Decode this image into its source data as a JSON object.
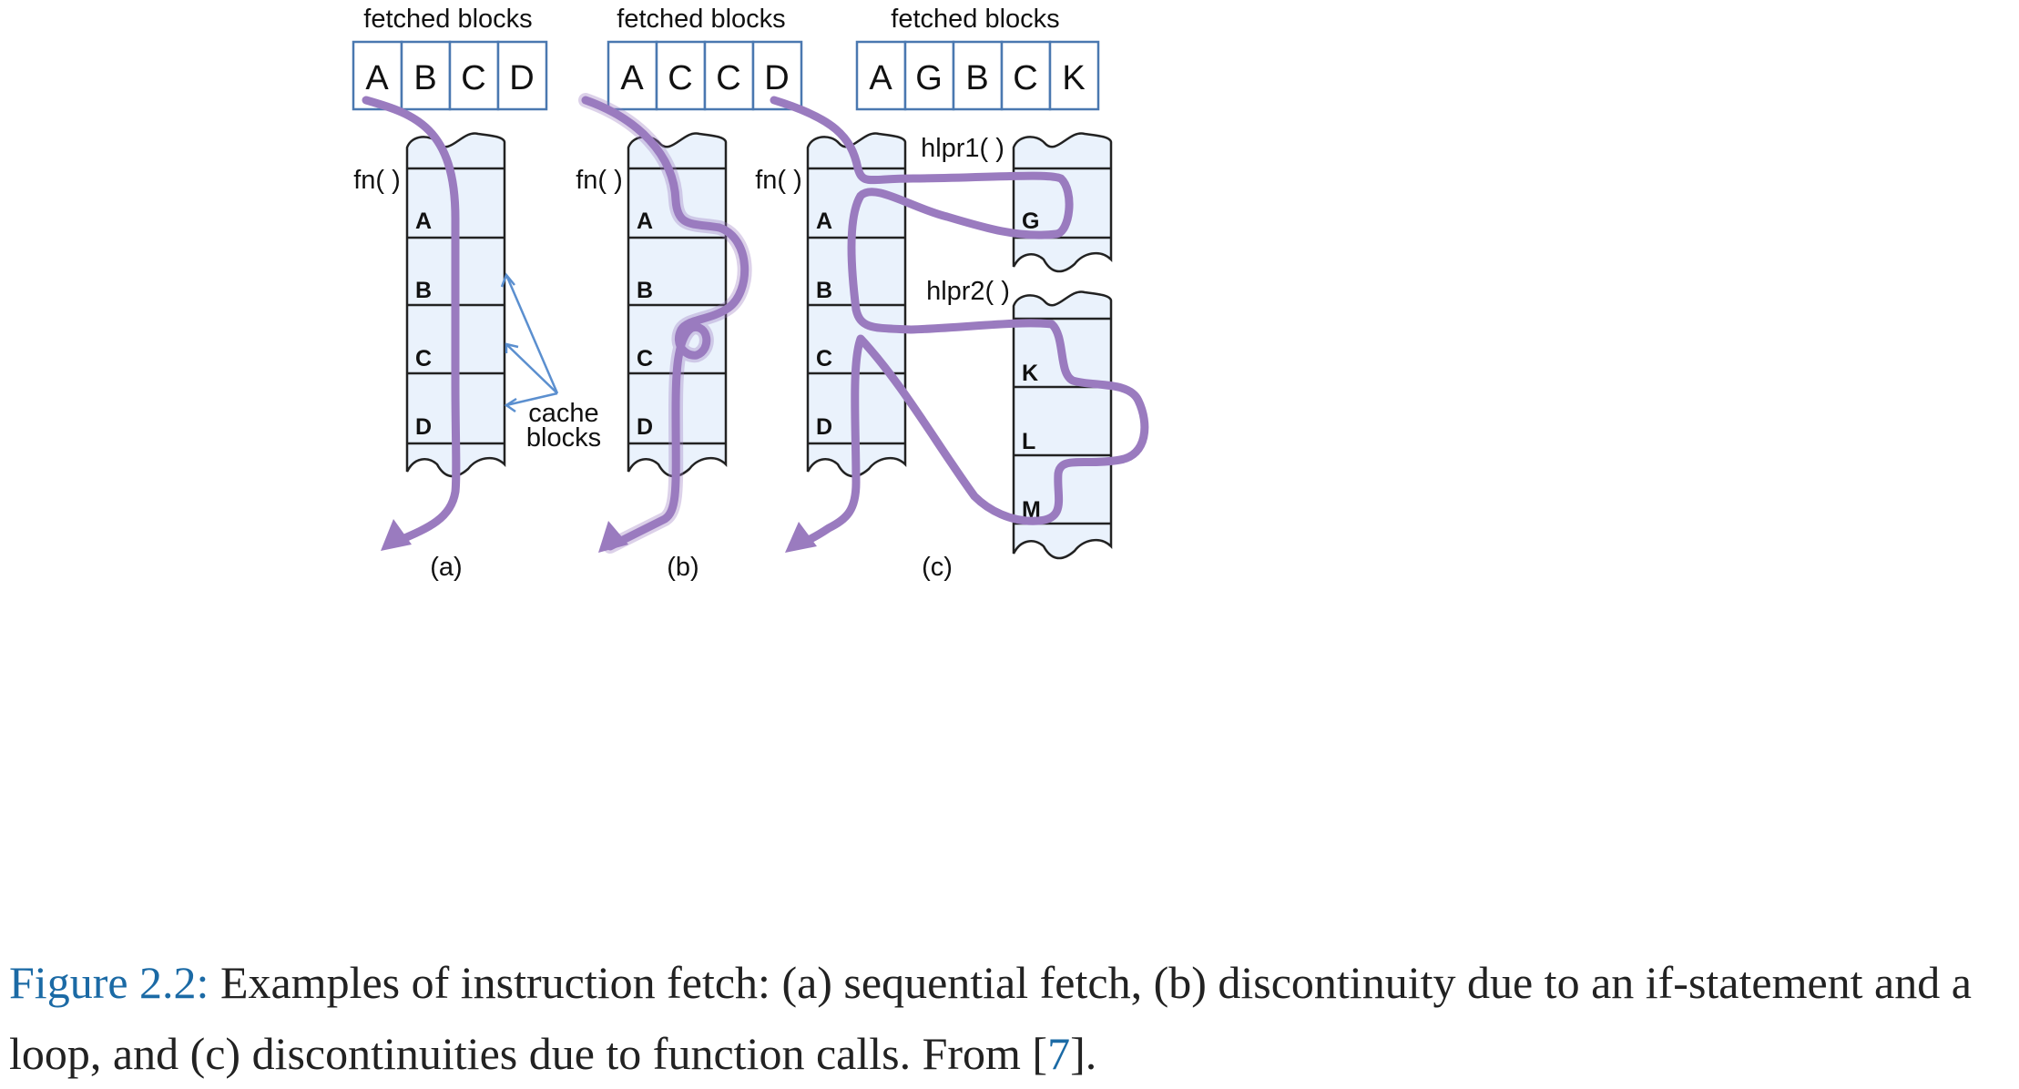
{
  "panels": [
    {
      "id": "a",
      "fetched_label": "fetched blocks",
      "fetched": [
        "A",
        "B",
        "C",
        "D"
      ],
      "fn_label": "fn( )",
      "blocks": [
        "A",
        "B",
        "C",
        "D"
      ],
      "sub_label": "(a)"
    },
    {
      "id": "b",
      "fetched_label": "fetched blocks",
      "fetched": [
        "A",
        "C",
        "C",
        "D"
      ],
      "fn_label": "fn( )",
      "blocks": [
        "A",
        "B",
        "C",
        "D"
      ],
      "sub_label": "(b)"
    },
    {
      "id": "c",
      "fetched_label": "fetched blocks",
      "fetched": [
        "A",
        "G",
        "B",
        "C",
        "K"
      ],
      "fn_label": "fn( )",
      "blocks": [
        "A",
        "B",
        "C",
        "D"
      ],
      "sub_label": "(c)",
      "helpers": [
        {
          "label": "hlpr1( )",
          "blocks": [
            "G"
          ]
        },
        {
          "label": "hlpr2( )",
          "blocks": [
            "K",
            "L",
            "M"
          ]
        }
      ]
    }
  ],
  "annotation": {
    "line1": "cache",
    "line2": "blocks"
  },
  "caption": {
    "figure_label": "Figure 2.2:",
    "text_1": " Examples of instruction fetch: (a) sequential fetch, (b) discontinuity due to an if-statement and a loop, and (c) discontinuities due to function calls. From ",
    "open_bracket": "[",
    "ref": "7",
    "close_text": "]."
  },
  "colors": {
    "flow": "#9a7bbf",
    "link": "#1b6aa5",
    "box_border": "#4a78b0",
    "block_fill": "#eaf2fc",
    "pointer": "#5b8fcf"
  }
}
